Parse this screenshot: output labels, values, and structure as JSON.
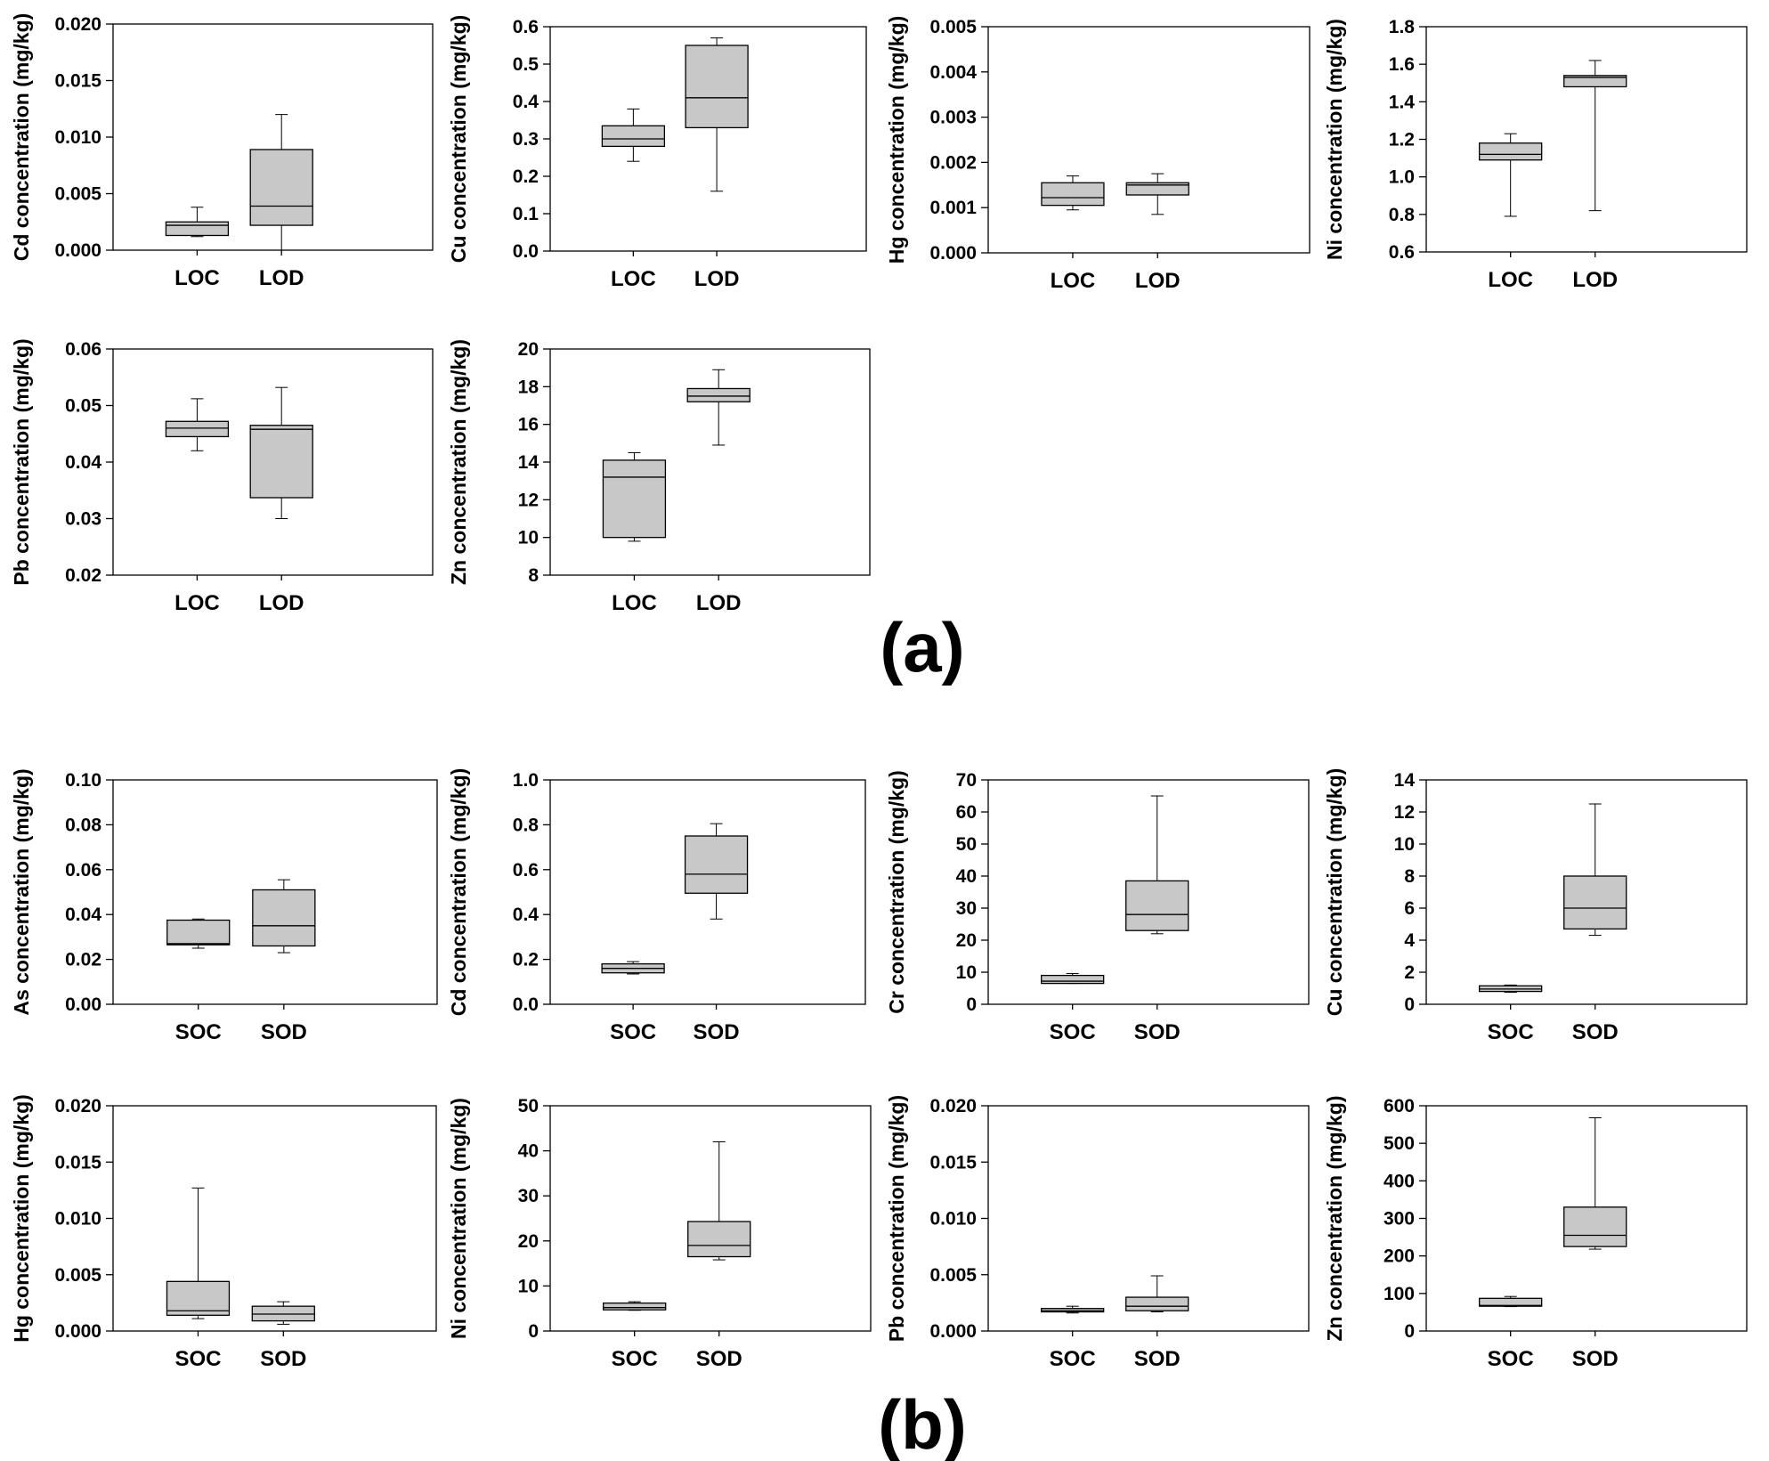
{
  "chart_data": [
    {
      "type": "box",
      "group": "a",
      "ylabel": "Cd concentration (mg/kg)",
      "ylim": [
        0,
        0.02
      ],
      "yticks": [
        0.0,
        0.005,
        0.01,
        0.015,
        0.02
      ],
      "ytick_labels": [
        "0.000",
        "0.005",
        "0.010",
        "0.015",
        "0.020"
      ],
      "categories": [
        "LOC",
        "LOD"
      ],
      "boxes": [
        {
          "min": 0.0012,
          "q1": 0.0013,
          "median": 0.0022,
          "q3": 0.0025,
          "max": 0.0038
        },
        {
          "min": 0.0,
          "q1": 0.0022,
          "median": 0.0039,
          "q3": 0.0089,
          "max": 0.012
        }
      ]
    },
    {
      "type": "box",
      "group": "a",
      "ylabel": "Cu concentration (mg/kg)",
      "ylim": [
        0,
        0.6
      ],
      "yticks": [
        0,
        0.1,
        0.2,
        0.3,
        0.4,
        0.5,
        0.6
      ],
      "ytick_labels": [
        "0.0",
        "0.1",
        "0.2",
        "0.3",
        "0.4",
        "0.5",
        "0.6"
      ],
      "categories": [
        "LOC",
        "LOD"
      ],
      "boxes": [
        {
          "min": 0.24,
          "q1": 0.28,
          "median": 0.3,
          "q3": 0.335,
          "max": 0.38
        },
        {
          "min": 0.16,
          "q1": 0.33,
          "median": 0.41,
          "q3": 0.55,
          "max": 0.57
        }
      ]
    },
    {
      "type": "box",
      "group": "a",
      "ylabel": "Hg concentration (mg/kg)",
      "ylim": [
        0,
        0.005
      ],
      "yticks": [
        0,
        0.001,
        0.002,
        0.003,
        0.004,
        0.005
      ],
      "ytick_labels": [
        "0.000",
        "0.001",
        "0.002",
        "0.003",
        "0.004",
        "0.005"
      ],
      "categories": [
        "LOC",
        "LOD"
      ],
      "boxes": [
        {
          "min": 0.00095,
          "q1": 0.00105,
          "median": 0.00122,
          "q3": 0.00155,
          "max": 0.0017
        },
        {
          "min": 0.00085,
          "q1": 0.00128,
          "median": 0.0015,
          "q3": 0.00155,
          "max": 0.00175
        }
      ]
    },
    {
      "type": "box",
      "group": "a",
      "ylabel": "Ni concentration (mg/kg)",
      "ylim": [
        0.6,
        1.8
      ],
      "yticks": [
        0.6,
        0.8,
        1.0,
        1.2,
        1.4,
        1.6,
        1.8
      ],
      "ytick_labels": [
        "0.6",
        "0.8",
        "1.0",
        "1.2",
        "1.4",
        "1.6",
        "1.8"
      ],
      "categories": [
        "LOC",
        "LOD"
      ],
      "boxes": [
        {
          "min": 0.79,
          "q1": 1.09,
          "median": 1.12,
          "q3": 1.18,
          "max": 1.23
        },
        {
          "min": 0.82,
          "q1": 1.48,
          "median": 1.53,
          "q3": 1.54,
          "max": 1.62
        }
      ]
    },
    {
      "type": "box",
      "group": "a",
      "ylabel": "Pb concentration (mg/kg)",
      "ylim": [
        0.02,
        0.06
      ],
      "yticks": [
        0.02,
        0.03,
        0.04,
        0.05,
        0.06
      ],
      "ytick_labels": [
        "0.02",
        "0.03",
        "0.04",
        "0.05",
        "0.06"
      ],
      "categories": [
        "LOC",
        "LOD"
      ],
      "boxes": [
        {
          "min": 0.042,
          "q1": 0.0445,
          "median": 0.046,
          "q3": 0.0472,
          "max": 0.0512
        },
        {
          "min": 0.03,
          "q1": 0.0337,
          "median": 0.0458,
          "q3": 0.0465,
          "max": 0.0532
        }
      ]
    },
    {
      "type": "box",
      "group": "a",
      "ylabel": "Zn concentration (mg/kg)",
      "ylim": [
        8,
        20
      ],
      "yticks": [
        8,
        10,
        12,
        14,
        16,
        18,
        20
      ],
      "ytick_labels": [
        "8",
        "10",
        "12",
        "14",
        "16",
        "18",
        "20"
      ],
      "categories": [
        "LOC",
        "LOD"
      ],
      "boxes": [
        {
          "min": 9.8,
          "q1": 10.0,
          "median": 13.2,
          "q3": 14.1,
          "max": 14.5
        },
        {
          "min": 14.9,
          "q1": 17.2,
          "median": 17.5,
          "q3": 17.9,
          "max": 18.9
        }
      ]
    },
    {
      "type": "box",
      "group": "b",
      "ylabel": "As concentration (mg/kg)",
      "ylim": [
        0,
        0.1
      ],
      "yticks": [
        0,
        0.02,
        0.04,
        0.06,
        0.08,
        0.1
      ],
      "ytick_labels": [
        "0.00",
        "0.02",
        "0.04",
        "0.06",
        "0.08",
        "0.10"
      ],
      "categories": [
        "SOC",
        "SOD"
      ],
      "boxes": [
        {
          "min": 0.025,
          "q1": 0.0265,
          "median": 0.027,
          "q3": 0.0375,
          "max": 0.038
        },
        {
          "min": 0.023,
          "q1": 0.026,
          "median": 0.035,
          "q3": 0.051,
          "max": 0.0555
        }
      ]
    },
    {
      "type": "box",
      "group": "b",
      "ylabel": "Cd concentration (mg/kg)",
      "ylim": [
        0,
        1.0
      ],
      "yticks": [
        0,
        0.2,
        0.4,
        0.6,
        0.8,
        1.0
      ],
      "ytick_labels": [
        "0.0",
        "0.2",
        "0.4",
        "0.6",
        "0.8",
        "1.0"
      ],
      "categories": [
        "SOC",
        "SOD"
      ],
      "boxes": [
        {
          "min": 0.135,
          "q1": 0.14,
          "median": 0.16,
          "q3": 0.18,
          "max": 0.19
        },
        {
          "min": 0.38,
          "q1": 0.495,
          "median": 0.58,
          "q3": 0.75,
          "max": 0.805
        }
      ]
    },
    {
      "type": "box",
      "group": "b",
      "ylabel": "Cr concentration (mg/kg)",
      "ylim": [
        0,
        70
      ],
      "yticks": [
        0,
        10,
        20,
        30,
        40,
        50,
        60,
        70
      ],
      "ytick_labels": [
        "0",
        "10",
        "20",
        "30",
        "40",
        "50",
        "60",
        "70"
      ],
      "categories": [
        "SOC",
        "SOD"
      ],
      "boxes": [
        {
          "min": 6.5,
          "q1": 6.5,
          "median": 7.2,
          "q3": 9.0,
          "max": 9.6
        },
        {
          "min": 22.0,
          "q1": 23.0,
          "median": 28.0,
          "q3": 38.5,
          "max": 65.0
        }
      ]
    },
    {
      "type": "box",
      "group": "b",
      "ylabel": "Cu concentration (mg/kg)",
      "ylim": [
        0,
        14
      ],
      "yticks": [
        0,
        2,
        4,
        6,
        8,
        10,
        12,
        14
      ],
      "ytick_labels": [
        "0",
        "2",
        "4",
        "6",
        "8",
        "10",
        "12",
        "14"
      ],
      "categories": [
        "SOC",
        "SOD"
      ],
      "boxes": [
        {
          "min": 0.75,
          "q1": 0.8,
          "median": 0.95,
          "q3": 1.15,
          "max": 1.2
        },
        {
          "min": 4.3,
          "q1": 4.7,
          "median": 6.0,
          "q3": 8.0,
          "max": 12.5
        }
      ]
    },
    {
      "type": "box",
      "group": "b",
      "ylabel": "Hg concentration (mg/kg)",
      "ylim": [
        0,
        0.02
      ],
      "yticks": [
        0,
        0.005,
        0.01,
        0.015,
        0.02
      ],
      "ytick_labels": [
        "0.000",
        "0.005",
        "0.010",
        "0.015",
        "0.020"
      ],
      "categories": [
        "SOC",
        "SOD"
      ],
      "boxes": [
        {
          "min": 0.0011,
          "q1": 0.0014,
          "median": 0.0018,
          "q3": 0.0044,
          "max": 0.0127
        },
        {
          "min": 0.0006,
          "q1": 0.0009,
          "median": 0.0015,
          "q3": 0.0022,
          "max": 0.0026
        }
      ]
    },
    {
      "type": "box",
      "group": "b",
      "ylabel": "Ni concentration (mg/kg)",
      "ylim": [
        0,
        50
      ],
      "yticks": [
        0,
        10,
        20,
        30,
        40,
        50
      ],
      "ytick_labels": [
        "0",
        "10",
        "20",
        "30",
        "40",
        "50"
      ],
      "categories": [
        "SOC",
        "SOD"
      ],
      "boxes": [
        {
          "min": 4.6,
          "q1": 4.7,
          "median": 5.2,
          "q3": 6.2,
          "max": 6.5
        },
        {
          "min": 15.8,
          "q1": 16.5,
          "median": 19.0,
          "q3": 24.3,
          "max": 42.0
        }
      ]
    },
    {
      "type": "box",
      "group": "b",
      "ylabel": "Pb concentration (mg/kg)",
      "ylim": [
        0,
        0.02
      ],
      "yticks": [
        0,
        0.005,
        0.01,
        0.015,
        0.02
      ],
      "ytick_labels": [
        "0.000",
        "0.005",
        "0.010",
        "0.015",
        "0.020"
      ],
      "categories": [
        "SOC",
        "SOD"
      ],
      "boxes": [
        {
          "min": 0.0016,
          "q1": 0.0017,
          "median": 0.0018,
          "q3": 0.002,
          "max": 0.0022
        },
        {
          "min": 0.0017,
          "q1": 0.0018,
          "median": 0.0022,
          "q3": 0.003,
          "max": 0.0049
        }
      ]
    },
    {
      "type": "box",
      "group": "b",
      "ylabel": "Zn concentration (mg/kg)",
      "ylim": [
        0,
        600
      ],
      "yticks": [
        0,
        100,
        200,
        300,
        400,
        500,
        600
      ],
      "ytick_labels": [
        "0",
        "100",
        "200",
        "300",
        "400",
        "500",
        "600"
      ],
      "categories": [
        "SOC",
        "SOD"
      ],
      "boxes": [
        {
          "min": 65,
          "q1": 66,
          "median": 68,
          "q3": 87,
          "max": 92
        },
        {
          "min": 218,
          "q1": 225,
          "median": 255,
          "q3": 330,
          "max": 568
        }
      ]
    }
  ],
  "panel_labels": {
    "a": "(a)",
    "b": "(b)"
  }
}
